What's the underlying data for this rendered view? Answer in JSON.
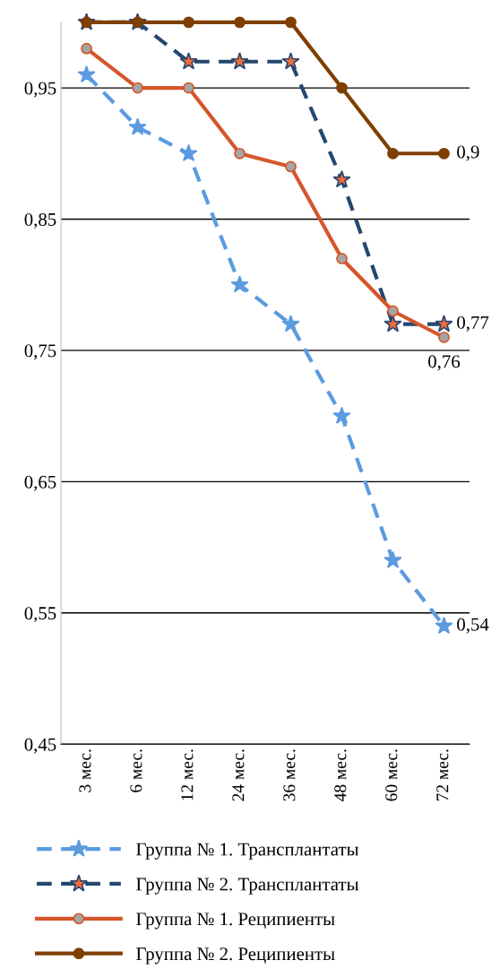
{
  "chart_data": {
    "type": "line",
    "categories": [
      "3 мес.",
      "6 мес.",
      "12 мес.",
      "24 мес.",
      "36 мес.",
      "48 мес.",
      "60 мес.",
      "72 мес."
    ],
    "ylim": [
      0.45,
      1.0
    ],
    "yticks": [
      {
        "value": 0.45,
        "label": "0,45"
      },
      {
        "value": 0.55,
        "label": "0,55"
      },
      {
        "value": 0.65,
        "label": "0,65"
      },
      {
        "value": 0.75,
        "label": "0,75"
      },
      {
        "value": 0.85,
        "label": "0,85"
      },
      {
        "value": 0.95,
        "label": "0,95"
      }
    ],
    "grid": "y",
    "legend": "bottom",
    "series": [
      {
        "name": "Группа № 1. Трансплантаты",
        "color": "#5b9be0",
        "line_style": "dashed",
        "marker": "star",
        "colors": [
          "#5b9be0",
          "#5b9be0",
          "#5b9be0",
          "#5b9be0",
          "#5b9be0",
          "#5b9be0",
          "#5b9be0",
          "#5b9be0"
        ],
        "values": [
          0.96,
          0.92,
          0.9,
          0.8,
          0.77,
          0.7,
          0.59,
          0.54
        ],
        "value_labels": [
          null,
          null,
          null,
          null,
          null,
          null,
          null,
          "0,54"
        ]
      },
      {
        "name": "Группа № 2. Трансплантаты",
        "color": "#24476f",
        "line_style": "dashed",
        "marker": "star",
        "colors": [
          "#f26b3a",
          "#f26b3a",
          "#f26b3a",
          "#f26b3a",
          "#f26b3a",
          "#f26b3a",
          "#f26b3a",
          "#f26b3a"
        ],
        "values": [
          1.0,
          1.0,
          0.97,
          0.97,
          0.97,
          0.88,
          0.77,
          0.77
        ],
        "value_labels": [
          null,
          null,
          null,
          null,
          null,
          null,
          null,
          "0,77"
        ]
      },
      {
        "name": "Группа № 1. Реципиенты",
        "color": "#d4562a",
        "line_style": "solid",
        "marker": "circle",
        "colors": [
          "#a5a5a5",
          "#a5a5a5",
          "#a5a5a5",
          "#a5a5a5",
          "#a5a5a5",
          "#a5a5a5",
          "#a5a5a5",
          "#a5a5a5"
        ],
        "values": [
          0.98,
          0.95,
          0.95,
          0.9,
          0.89,
          0.82,
          0.78,
          0.76
        ],
        "value_labels": [
          null,
          null,
          null,
          null,
          null,
          null,
          null,
          "0,76"
        ]
      },
      {
        "name": "Группа № 2. Реципиенты",
        "color": "#7f3f00",
        "line_style": "solid",
        "marker": "circle",
        "colors": [
          "#7f3f00",
          "#7f3f00",
          "#7f3f00",
          "#7f3f00",
          "#7f3f00",
          "#7f3f00",
          "#7f3f00",
          "#7f3f00"
        ],
        "values": [
          1.0,
          1.0,
          1.0,
          1.0,
          1.0,
          0.95,
          0.9,
          0.9
        ],
        "value_labels": [
          null,
          null,
          null,
          null,
          null,
          null,
          null,
          "0,9"
        ]
      }
    ]
  }
}
